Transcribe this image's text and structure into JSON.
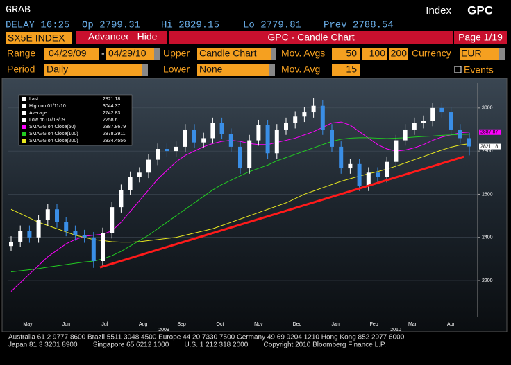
{
  "header": {
    "left": "GRAB",
    "right_label": "Index",
    "right_code": "GPC"
  },
  "quote": {
    "delay": "DELAY 16:25",
    "op": "Op 2799.31",
    "hi": "Hi 2829.15",
    "lo": "Lo 2779.81",
    "prev": "Prev 2788.54"
  },
  "toolbar": {
    "security": "SX5E INDEX",
    "advanced": "Advanced",
    "hide": "Hide",
    "title": "GPC - Candle Chart",
    "page": "Page 1/19"
  },
  "settings": {
    "range_label": "Range",
    "from": "04/29/09",
    "sep": "-",
    "to": "04/29/10",
    "upper_label": "Upper",
    "upper": "Candle Chart",
    "mavgs_label": "Mov. Avgs",
    "mavgs": [
      "50",
      "100",
      "200"
    ],
    "currency_label": "Currency",
    "currency": "EUR",
    "period_label": "Period",
    "period": "Daily",
    "lower_label": "Lower",
    "lower": "None",
    "mavg_label": "Mov. Avg",
    "mavg": "15",
    "events": "Events"
  },
  "chart_data": {
    "type": "candlestick",
    "ylim": [
      2030,
      3115
    ],
    "yticks": [
      2200,
      2400,
      2600,
      2800,
      3000
    ],
    "grid": true,
    "months": [
      "May",
      "Jun",
      "Jul",
      "Aug",
      "Sep",
      "Oct",
      "Nov",
      "Dec",
      "Jan",
      "Feb",
      "Mar",
      "Apr"
    ],
    "years": [
      "2009",
      "2010"
    ],
    "up_color": "#ffffff",
    "down_color": "#3a8ee6",
    "candles": [
      [
        2360,
        2405,
        2335,
        2380
      ],
      [
        2380,
        2455,
        2355,
        2430
      ],
      [
        2430,
        2455,
        2375,
        2400
      ],
      [
        2400,
        2505,
        2375,
        2480
      ],
      [
        2480,
        2555,
        2455,
        2530
      ],
      [
        2530,
        2555,
        2445,
        2470
      ],
      [
        2470,
        2495,
        2405,
        2430
      ],
      [
        2430,
        2455,
        2385,
        2410
      ],
      [
        2410,
        2435,
        2375,
        2400
      ],
      [
        2400,
        2425,
        2258.6,
        2290
      ],
      [
        2290,
        2445,
        2265,
        2420
      ],
      [
        2420,
        2565,
        2395,
        2540
      ],
      [
        2540,
        2645,
        2515,
        2620
      ],
      [
        2620,
        2705,
        2595,
        2680
      ],
      [
        2680,
        2725,
        2655,
        2700
      ],
      [
        2700,
        2785,
        2675,
        2760
      ],
      [
        2760,
        2835,
        2735,
        2810
      ],
      [
        2810,
        2835,
        2775,
        2800
      ],
      [
        2800,
        2845,
        2775,
        2820
      ],
      [
        2820,
        2925,
        2795,
        2900
      ],
      [
        2900,
        2925,
        2815,
        2840
      ],
      [
        2840,
        2885,
        2815,
        2860
      ],
      [
        2860,
        2955,
        2835,
        2930
      ],
      [
        2930,
        2955,
        2855,
        2880
      ],
      [
        2880,
        2905,
        2795,
        2820
      ],
      [
        2820,
        2845,
        2695,
        2720
      ],
      [
        2720,
        2875,
        2695,
        2850
      ],
      [
        2850,
        2945,
        2825,
        2920
      ],
      [
        2920,
        2945,
        2765,
        2790
      ],
      [
        2790,
        2925,
        2765,
        2900
      ],
      [
        2900,
        2955,
        2875,
        2930
      ],
      [
        2930,
        2985,
        2905,
        2960
      ],
      [
        2960,
        3005,
        2935,
        2980
      ],
      [
        2980,
        3044.37,
        2955,
        3010
      ],
      [
        3010,
        3035,
        2875,
        2900
      ],
      [
        2900,
        2925,
        2795,
        2820
      ],
      [
        2820,
        2845,
        2695,
        2720
      ],
      [
        2720,
        2765,
        2695,
        2740
      ],
      [
        2740,
        2765,
        2615,
        2640
      ],
      [
        2640,
        2725,
        2615,
        2700
      ],
      [
        2700,
        2725,
        2655,
        2680
      ],
      [
        2680,
        2775,
        2655,
        2750
      ],
      [
        2750,
        2875,
        2725,
        2850
      ],
      [
        2850,
        2925,
        2825,
        2900
      ],
      [
        2900,
        2955,
        2875,
        2930
      ],
      [
        2930,
        2965,
        2905,
        2940
      ],
      [
        2940,
        3025,
        2915,
        3000
      ],
      [
        3000,
        3025,
        2955,
        2980
      ],
      [
        2980,
        3005,
        2875,
        2900
      ],
      [
        2900,
        2925,
        2835,
        2860
      ],
      [
        2860,
        2885,
        2779.81,
        2821.18
      ]
    ],
    "series": [
      {
        "name": "SMAVG on Close(50)",
        "last": 2887.8679,
        "color": "#ff00ff",
        "values": [
          2150,
          2190,
          2230,
          2270,
          2310,
          2340,
          2370,
          2390,
          2405,
          2410,
          2415,
          2430,
          2470,
          2520,
          2570,
          2620,
          2670,
          2710,
          2750,
          2780,
          2800,
          2820,
          2835,
          2845,
          2850,
          2845,
          2835,
          2830,
          2830,
          2840,
          2850,
          2860,
          2875,
          2890,
          2910,
          2930,
          2935,
          2920,
          2890,
          2860,
          2830,
          2810,
          2800,
          2805,
          2815,
          2830,
          2850,
          2865,
          2875,
          2885,
          2888
        ]
      },
      {
        "name": "SMAVG on Close(100)",
        "last": 2878.3911,
        "color": "#22cc22",
        "values": [
          2240,
          2245,
          2250,
          2255,
          2262,
          2268,
          2274,
          2280,
          2286,
          2290,
          2300,
          2315,
          2335,
          2360,
          2385,
          2410,
          2440,
          2470,
          2500,
          2530,
          2560,
          2590,
          2620,
          2645,
          2665,
          2685,
          2705,
          2720,
          2735,
          2755,
          2770,
          2785,
          2800,
          2815,
          2830,
          2845,
          2855,
          2860,
          2862,
          2862,
          2860,
          2858,
          2860,
          2862,
          2865,
          2868,
          2870,
          2873,
          2875,
          2877,
          2878
        ]
      },
      {
        "name": "SMAVG on Close(200)",
        "last": 2834.4556,
        "color": "#e8e820",
        "values": [
          2530,
          2510,
          2490,
          2470,
          2455,
          2440,
          2425,
          2410,
          2400,
          2390,
          2385,
          2380,
          2378,
          2378,
          2380,
          2385,
          2390,
          2395,
          2400,
          2410,
          2420,
          2430,
          2440,
          2455,
          2470,
          2485,
          2500,
          2515,
          2530,
          2545,
          2560,
          2580,
          2600,
          2615,
          2630,
          2645,
          2660,
          2672,
          2684,
          2695,
          2705,
          2717,
          2730,
          2745,
          2760,
          2775,
          2790,
          2805,
          2818,
          2828,
          2834
        ]
      }
    ],
    "stats": [
      {
        "label": "Last",
        "value": 2821.18
      },
      {
        "label": "High on 01/11/10",
        "value": 3044.37
      },
      {
        "label": "Average",
        "value": 2742.83
      },
      {
        "label": "Low on 07/13/09",
        "value": 2258.6
      }
    ],
    "last_tags": [
      {
        "value": 2887.87,
        "color": "#ff00ff"
      },
      {
        "value": 2821.18,
        "color": "#ffffff"
      }
    ],
    "trend_line": {
      "color": "#ff1a1a",
      "points": [
        [
          9.7,
          2261
        ],
        [
          49.4,
          2774
        ]
      ]
    }
  },
  "footer": [
    "Australia 61 2 9777 8600 Brazil 5511 3048 4500 Europe 44 20 7330 7500 Germany 49 69 9204 1210 Hong Kong 852 2977 6000",
    "Japan 81 3 3201 8900        Singapore 65 6212 1000        U.S. 1 212 318 2000        Copyright 2010 Bloomberg Finance L.P."
  ]
}
